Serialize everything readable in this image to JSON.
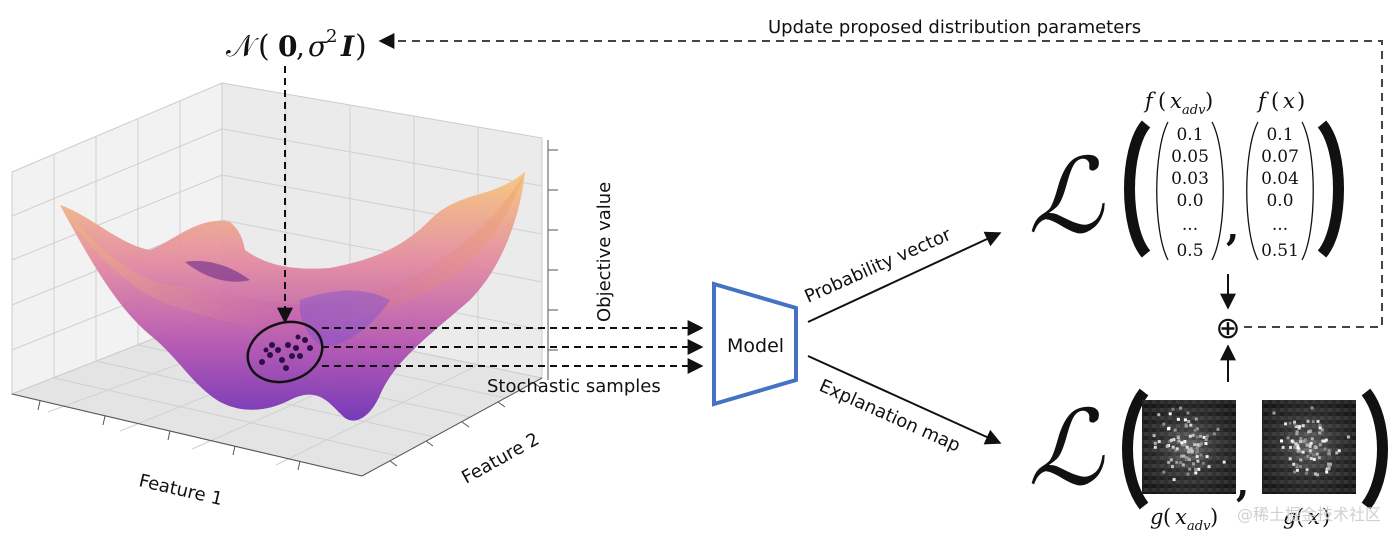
{
  "top_arrow_label": "Update proposed distribution parameters",
  "distribution": {
    "script_n": "𝒩",
    "open": "(",
    "zero": "0",
    "comma": ",",
    "sigma": "σ",
    "sup": "2",
    "ident": "I",
    "close": ")"
  },
  "plot": {
    "z_label": "Objective value",
    "x_label": "Feature 1",
    "y_label": "Feature 2",
    "samples_label": "Stochastic samples"
  },
  "model_label": "Model",
  "prob_vector_label": "Probability vector",
  "explanation_map_label": "Explanation map",
  "loss_symbol": "ℒ",
  "plus_symbol": "⊕",
  "vector_adv": {
    "label_f": "f",
    "label_x": "x",
    "label_sub": "adv",
    "values": [
      "0.1",
      "0.05",
      "0.03",
      "0.0",
      "...",
      "0.5"
    ]
  },
  "vector_orig": {
    "label_f": "f",
    "label_x": "x",
    "values": [
      "0.1",
      "0.07",
      "0.04",
      "0.0",
      "...",
      "0.51"
    ]
  },
  "map_adv": {
    "label_g": "g",
    "label_x": "x",
    "label_sub": "adv"
  },
  "map_orig": {
    "label_g": "g",
    "label_x": "x"
  },
  "watermark": "@稀土掘金技术社区",
  "colors": {
    "model_outline": "#4472C4",
    "surface_low": "#7a2fb0",
    "surface_mid": "#d261a8",
    "surface_high": "#f5b06a"
  }
}
